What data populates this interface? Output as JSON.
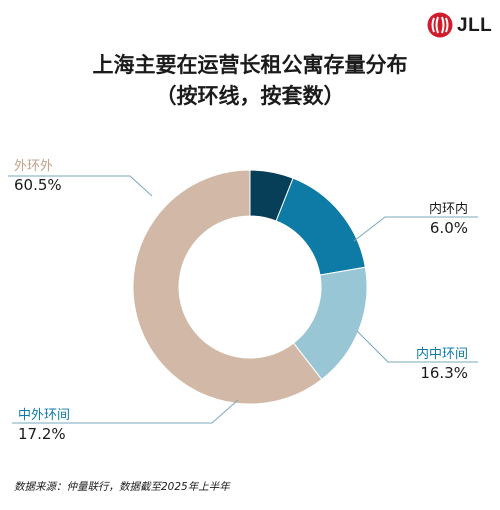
{
  "brand": {
    "name": "JLL"
  },
  "title_lines": [
    "上海主要在运营长租公寓存量分布",
    "（按环线，按套数）"
  ],
  "source": "数据来源：仲量联行，数据截至2025年上半年",
  "colors": {
    "外环外": "#d2b8a7",
    "内环内": "#083f58",
    "内中环间": "#0d7ba6",
    "中外环间": "#99c6d4",
    "label_dark": "#1b1b1b",
    "label_blue": "#0d7ba6",
    "label_tan": "#c4a089",
    "brand_red": "#cf1d2d"
  },
  "chart_data": {
    "type": "pie",
    "donut": true,
    "title": "上海主要在运营长租公寓存量分布（按环线，按套数）",
    "unit": "%",
    "slices": [
      {
        "label": "内环内",
        "value": 6.0,
        "value_label": "6.0%"
      },
      {
        "label": "内中环间",
        "value": 16.3,
        "value_label": "16.3%"
      },
      {
        "label": "中外环间",
        "value": 17.2,
        "value_label": "17.2%"
      },
      {
        "label": "外环外",
        "value": 60.5,
        "value_label": "60.5%"
      }
    ]
  }
}
